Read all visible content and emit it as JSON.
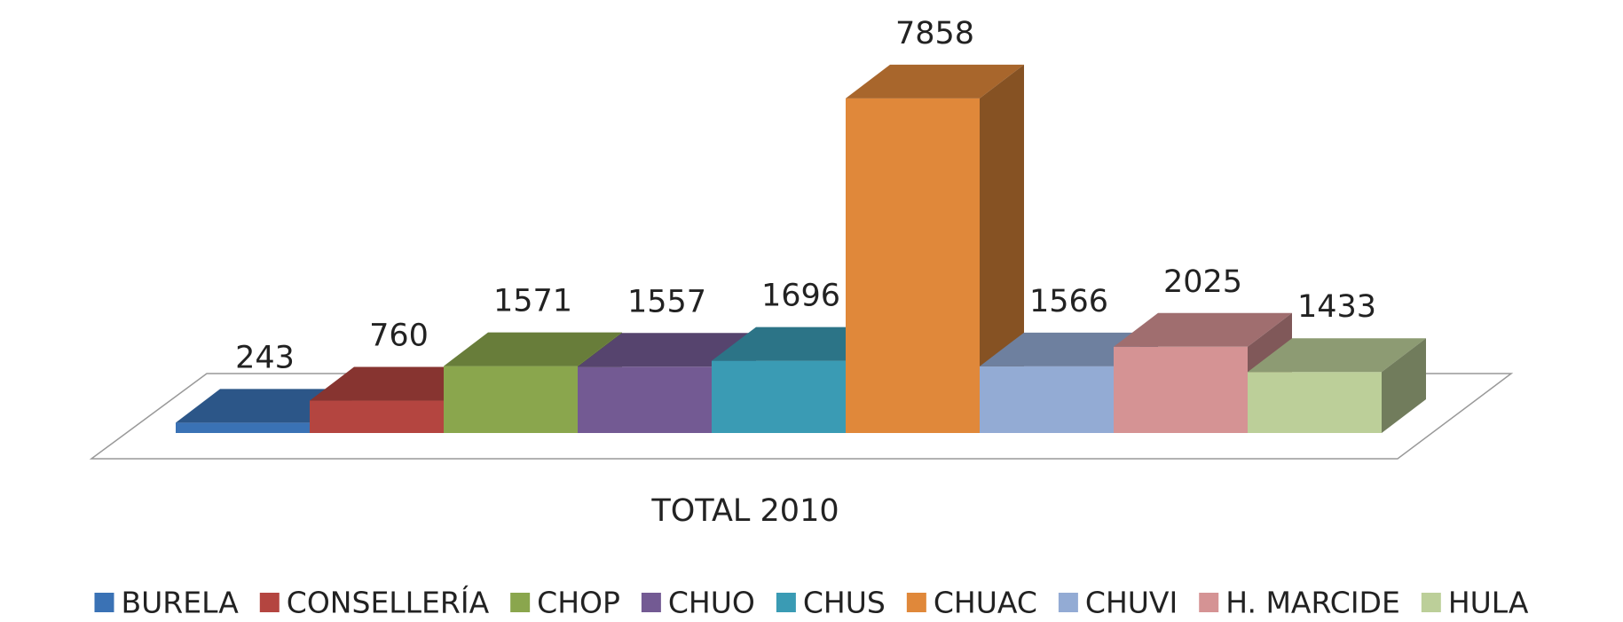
{
  "chart_data": {
    "type": "bar",
    "categories": [
      "TOTAL 2010"
    ],
    "series": [
      {
        "name": "BURELA",
        "color": "#3a72b5",
        "values": [
          243
        ]
      },
      {
        "name": "CONSELLERÍA",
        "color": "#b44540",
        "values": [
          760
        ]
      },
      {
        "name": "CHOP",
        "color": "#8aa64d",
        "values": [
          1571
        ]
      },
      {
        "name": "CHUO",
        "color": "#735a93",
        "values": [
          1557
        ]
      },
      {
        "name": "CHUS",
        "color": "#3a9bb4",
        "values": [
          1696
        ]
      },
      {
        "name": "CHUAC",
        "color": "#e0883a",
        "values": [
          7858
        ]
      },
      {
        "name": "CHUVI",
        "color": "#93abd4",
        "values": [
          1566
        ]
      },
      {
        "name": "H. MARCIDE",
        "color": "#d59394",
        "values": [
          2025
        ]
      },
      {
        "name": "HULA",
        "color": "#bccf99",
        "values": [
          1433
        ]
      }
    ],
    "ylim": [
      0,
      8000
    ],
    "legend": "bottom"
  }
}
